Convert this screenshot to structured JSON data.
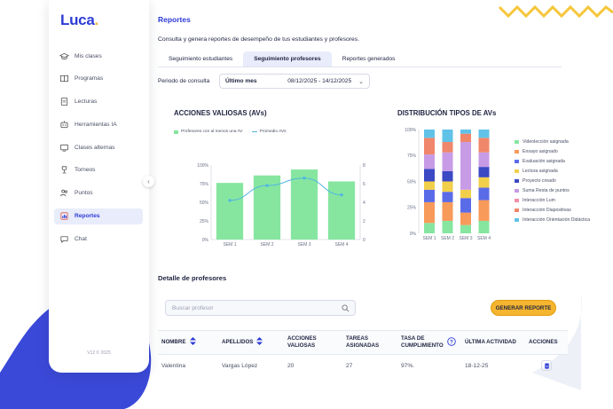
{
  "brand": {
    "logo": "Luca",
    "logo_dot": "."
  },
  "sidebar": {
    "items": [
      {
        "label": "Mis clases",
        "icon": "graduation-cap-icon"
      },
      {
        "label": "Programas",
        "icon": "book-icon"
      },
      {
        "label": "Lecturas",
        "icon": "document-icon"
      },
      {
        "label": "Herramientas IA",
        "icon": "robot-icon"
      },
      {
        "label": "Clases alternas",
        "icon": "screen-icon"
      },
      {
        "label": "Torneos",
        "icon": "trophy-icon"
      },
      {
        "label": "Puntos",
        "icon": "users-icon"
      },
      {
        "label": "Reportes",
        "icon": "report-icon",
        "active": true
      },
      {
        "label": "Chat",
        "icon": "chat-icon"
      }
    ],
    "version": "V12 © 2025"
  },
  "header": {
    "title": "Reportes",
    "subtitle": "Consulta y genera reportes de desempeño de tus estudiantes y profesores."
  },
  "tabs": [
    {
      "label": "Seguimiento estudiantes",
      "active": false
    },
    {
      "label": "Seguimiento profesores",
      "active": true
    },
    {
      "label": "Reportes generados",
      "active": false
    }
  ],
  "period": {
    "label": "Periodo de consulta",
    "selected": "Último mes",
    "dates": "08/12/2025 - 14/12/2025"
  },
  "chart_data": [
    {
      "type": "bar",
      "title": "ACCIONES VALIOSAS (AVs)",
      "categories": [
        "SEM 1",
        "SEM 2",
        "SEM 3",
        "SEM 4"
      ],
      "series": [
        {
          "name": "Profesores con al menos una AV",
          "kind": "bar",
          "values": [
            76,
            86,
            94,
            78
          ],
          "color": "#86e6a0"
        },
        {
          "name": "Promedio AVs",
          "kind": "line",
          "values": [
            4.2,
            5.8,
            6.6,
            4.8
          ],
          "color": "#52b6e0"
        }
      ],
      "yticks_left": [
        "100%",
        "75%",
        "50%",
        "25%",
        "0%"
      ],
      "yticks_right": [
        "8",
        "6",
        "4",
        "2",
        "0"
      ],
      "ylim": [
        0,
        100
      ],
      "ylim_right": [
        0,
        8
      ],
      "legend": "top-left"
    },
    {
      "type": "bar",
      "stacked": true,
      "title": "DISTRIBUCIÓN TIPOS DE AVs",
      "categories": [
        "SEM 1",
        "SEM 2",
        "SEM 3",
        "SEM 4"
      ],
      "yticks": [
        "100%",
        "75%",
        "50%",
        "25%",
        "0%"
      ],
      "ylim": [
        0,
        100
      ],
      "legend": "right",
      "series": [
        {
          "name": "Videolección asignada",
          "color": "#86e6a0",
          "values": [
            10,
            12,
            8,
            12
          ]
        },
        {
          "name": "Ensayo asignado",
          "color": "#f79a5a",
          "values": [
            20,
            18,
            12,
            20
          ]
        },
        {
          "name": "Evaluación asignada",
          "color": "#5a6be8",
          "values": [
            12,
            10,
            14,
            12
          ]
        },
        {
          "name": "Lectura asignada",
          "color": "#f2cf4a",
          "values": [
            8,
            10,
            8,
            10
          ]
        },
        {
          "name": "Proyecto creado",
          "color": "#3b49c4",
          "values": [
            12,
            10,
            0,
            10
          ]
        },
        {
          "name": "Suma Resta de puntos",
          "color": "#c89be6",
          "values": [
            14,
            18,
            46,
            14
          ]
        },
        {
          "name": "Interacción Lum",
          "color": "#f08fa6",
          "values": [
            0,
            0,
            0,
            0
          ]
        },
        {
          "name": "Interacción Diapositivas",
          "color": "#f0866a",
          "values": [
            16,
            10,
            8,
            14
          ]
        },
        {
          "name": "Interacción Orientación Didáctica",
          "color": "#61c2e8",
          "values": [
            8,
            12,
            4,
            8
          ]
        }
      ]
    }
  ],
  "detail": {
    "title": "Detalle de profesores",
    "search_placeholder": "Buscar profesor",
    "generate_button": "GENERAR REPORTE",
    "columns": {
      "nombre": "NOMBRE",
      "apellidos": "APELLIDOS",
      "acciones_1": "ACCIONES",
      "acciones_2": "VALIOSAS",
      "tareas_1": "TAREAS",
      "tareas_2": "ASIGNADAS",
      "tasa_1": "TASA DE",
      "tasa_2": "CUMPLIMIENTO",
      "ultima": "ÚLTIMA ACTIVIDAD",
      "acciones": "ACCIONES"
    },
    "rows": [
      {
        "nombre": "Valentina",
        "apellidos": "Vargas López",
        "acciones": "20",
        "tareas": "27",
        "tasa": "97%.",
        "ultima": "18-12-25"
      }
    ]
  },
  "colors": {
    "accent": "#2d3bd6",
    "button": "#f5b52f",
    "deco_blue": "#3b49d8",
    "zigzag": "#f5c63a"
  }
}
